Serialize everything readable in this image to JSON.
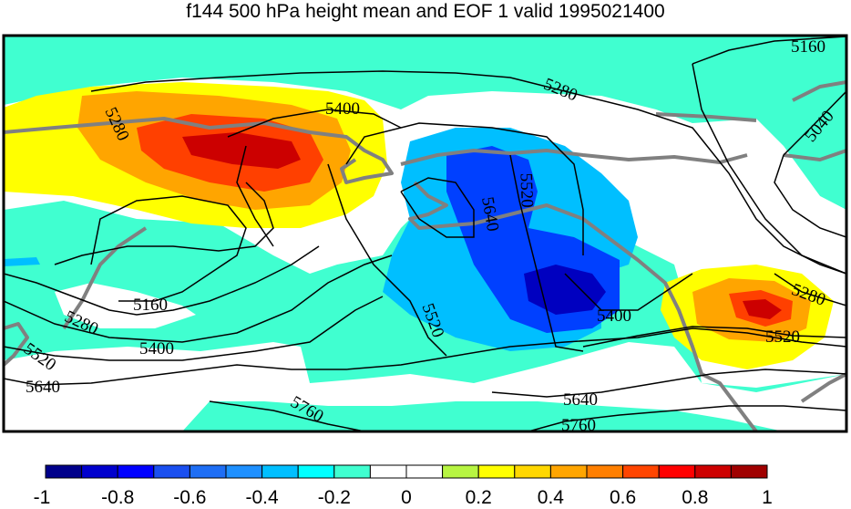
{
  "title": "f144 500 hPa height mean and EOF 1 valid 1995021400",
  "contour_labels": {
    "l5160a": "5160",
    "l5040": "5040",
    "l5280a": "5280",
    "l5400a": "5400",
    "l5280b": "5280",
    "l5520a": "5520",
    "l5640a": "5640",
    "l5520b": "5520",
    "l5400b": "5400",
    "l5280c": "5280",
    "l5520c": "5520",
    "l5160b": "5160",
    "l5280d": "5280",
    "l5400c": "5400",
    "l5520d": "5520",
    "l5640b": "5640",
    "l5640c": "5640",
    "l5760a": "5760",
    "l5760b": "5760"
  },
  "colorbar": {
    "colors": [
      "#00008b",
      "#0000cd",
      "#0000ff",
      "#1a4ff0",
      "#1e6ef5",
      "#1e90ff",
      "#00bfff",
      "#00ffff",
      "#40ffd0",
      "#ffffff",
      "#ffffff",
      "#b7f542",
      "#ffff00",
      "#ffd700",
      "#ffa500",
      "#ff7f00",
      "#ff4500",
      "#ff0000",
      "#cd0000",
      "#a00000"
    ],
    "tick_labels": [
      "-1",
      "-0.8",
      "-0.6",
      "-0.4",
      "-0.2",
      "0",
      "0.2",
      "0.4",
      "0.6",
      "0.8",
      "1"
    ]
  },
  "eof_colors": {
    "pos_light": "#ffff00",
    "pos_mid": "#ffa500",
    "pos_strong": "#ff4000",
    "pos_peak": "#cc0000",
    "neg_light": "#40ffd0",
    "neg_mid": "#00bfff",
    "neg_strong": "#0040ff",
    "neg_peak": "#0000c0",
    "coast": "#808080"
  }
}
